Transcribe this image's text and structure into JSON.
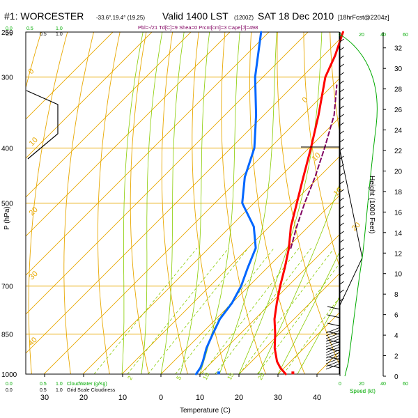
{
  "header": {
    "station": "#1: WORCESTER",
    "coords": "-33.6°,19.4° (19,25)",
    "valid": "Valid 1400 LST",
    "utc": "(1200Z)",
    "date": "SAT 18 Dec 2010",
    "forecast": "[18hrFcst@2204z]",
    "parcel_info": "Pbl=-/21 Td[C]=9 Shea=0 Prcnt[cm]=3 Cape[J]=498"
  },
  "colors": {
    "background": "#ffffff",
    "isobar": "#e8a800",
    "dry_adiabat": "#e8a800",
    "moist_adiabat": "#88cc00",
    "mixing_ratio": "#88cc00",
    "temperature": "#ff0000",
    "dewpoint": "#0066ff",
    "parcel": "#800060",
    "wind": "#000000",
    "speed_profile": "#00aa00",
    "cloud_green": "#00aa00",
    "dry_adiabat_label": "#e8a800"
  },
  "axes": {
    "xlabel": "Temperature (C)",
    "ylabel": "P (hPa)",
    "right_label": "Height (1000 Feet)",
    "speed_label": "Speed (kt)",
    "x_ticks": [
      "30",
      "20",
      "10",
      "0",
      "10",
      "20",
      "30",
      "40"
    ],
    "p_ticks": [
      "250",
      "300",
      "400",
      "500",
      "700",
      "850",
      "1000"
    ],
    "p_levels": [
      250,
      300,
      400,
      500,
      700,
      850,
      1000
    ],
    "height_ticks": [
      "0",
      "2",
      "4",
      "6",
      "8",
      "10",
      "12",
      "14",
      "16",
      "18",
      "20",
      "22",
      "24",
      "26",
      "28",
      "30",
      "32"
    ],
    "height_values": [
      0,
      2,
      4,
      6,
      8,
      10,
      12,
      14,
      16,
      18,
      20,
      22,
      24,
      26,
      28,
      30,
      32
    ],
    "speed_ticks_top": [
      "0",
      "20",
      "40",
      "60"
    ],
    "speed_ticks_bottom": [
      "0",
      "20",
      "40",
      "60"
    ],
    "cloud_ticks_top_left": [
      "0.0",
      "0.5",
      "1.0"
    ],
    "cloud_ticks_top_left2": [
      "0.0",
      "0.5",
      "1.0"
    ],
    "cloud_ticks_bottom": [
      "0.0",
      "0.5",
      "1.0"
    ],
    "cloud_ticks_bottom2": [
      "0.0",
      "0.5",
      "1.0"
    ],
    "cloudwater_label": "CloudWater (g/Kg)",
    "cloudiness_label": "Grid Scale Cloudiness"
  },
  "chart_data": {
    "type": "line",
    "title": "#1: WORCESTER Valid 1400 LST (1200Z) SAT 18 Dec 2010",
    "xlabel": "Temperature (C)",
    "ylabel": "P (hPa)",
    "xlim": [
      -35,
      50
    ],
    "plim": [
      250,
      1000
    ],
    "series": [
      {
        "name": "Temperature",
        "points": [
          {
            "p": 1000,
            "t": 32
          },
          {
            "p": 975,
            "t": 29
          },
          {
            "p": 950,
            "t": 26.5
          },
          {
            "p": 900,
            "t": 22.5
          },
          {
            "p": 850,
            "t": 19
          },
          {
            "p": 800,
            "t": 15
          },
          {
            "p": 750,
            "t": 11.5
          },
          {
            "p": 700,
            "t": 8
          },
          {
            "p": 650,
            "t": 4.5
          },
          {
            "p": 600,
            "t": 0.5
          },
          {
            "p": 550,
            "t": -4.5
          },
          {
            "p": 500,
            "t": -9
          },
          {
            "p": 450,
            "t": -14
          },
          {
            "p": 400,
            "t": -19.5
          },
          {
            "p": 350,
            "t": -26
          },
          {
            "p": 300,
            "t": -34
          },
          {
            "p": 275,
            "t": -37
          },
          {
            "p": 250,
            "t": -41
          }
        ]
      },
      {
        "name": "Dewpoint",
        "points": [
          {
            "p": 1000,
            "t": 9
          },
          {
            "p": 975,
            "t": 8.5
          },
          {
            "p": 950,
            "t": 7.5
          },
          {
            "p": 900,
            "t": 5
          },
          {
            "p": 850,
            "t": 3
          },
          {
            "p": 800,
            "t": 1
          },
          {
            "p": 750,
            "t": 0
          },
          {
            "p": 700,
            "t": -2
          },
          {
            "p": 650,
            "t": -5
          },
          {
            "p": 600,
            "t": -8
          },
          {
            "p": 550,
            "t": -14
          },
          {
            "p": 500,
            "t": -23
          },
          {
            "p": 450,
            "t": -29
          },
          {
            "p": 400,
            "t": -34
          },
          {
            "p": 350,
            "t": -42
          },
          {
            "p": 300,
            "t": -52
          },
          {
            "p": 250,
            "t": -62
          }
        ]
      },
      {
        "name": "Parcel",
        "points": [
          {
            "p": 600,
            "t": 1
          },
          {
            "p": 550,
            "t": -3
          },
          {
            "p": 500,
            "t": -7
          },
          {
            "p": 450,
            "t": -11
          },
          {
            "p": 400,
            "t": -16
          },
          {
            "p": 350,
            "t": -22
          },
          {
            "p": 310,
            "t": -29
          }
        ]
      }
    ],
    "surface_points": [
      {
        "name": "surface_temperature",
        "p": 995,
        "t": 33.5
      },
      {
        "name": "surface_dewpoint",
        "p": 995,
        "t": 14.5
      }
    ],
    "dry_adiabat_labels": [
      "0",
      "10",
      "20",
      "30",
      "40",
      "10",
      "0",
      "10",
      "20"
    ],
    "mixing_ratio_labels": [
      "2",
      "5",
      "10",
      "15",
      "20"
    ],
    "grid": true
  }
}
